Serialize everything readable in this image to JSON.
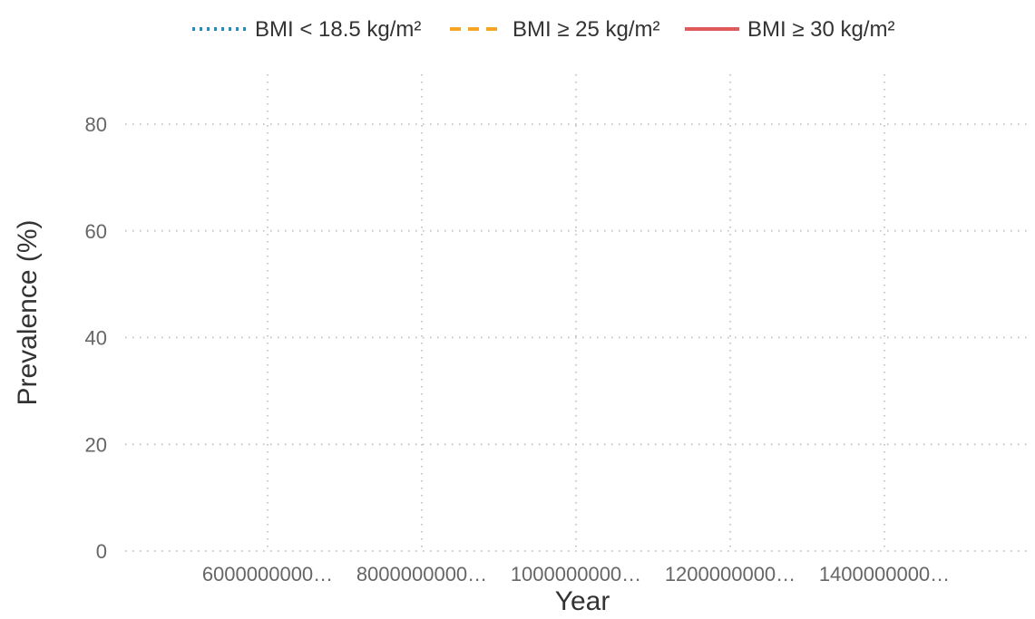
{
  "chart_data": {
    "type": "line",
    "title": "",
    "xlabel": "Year",
    "ylabel": "Prevalence (%)",
    "x_ticks": [
      "6000000000…",
      "8000000000…",
      "1000000000…",
      "1200000000…",
      "1400000000…"
    ],
    "y_ticks": [
      "0",
      "20",
      "40",
      "60",
      "80"
    ],
    "y_tick_values": [
      0,
      20,
      40,
      60,
      80
    ],
    "ylim": [
      0,
      80
    ],
    "grid": true,
    "legend_position": "top",
    "series": [
      {
        "name": "BMI < 18.5 kg/m²",
        "values": [],
        "color": "#1f8fc0",
        "style": "dotted"
      },
      {
        "name": "BMI ≥ 25 kg/m²",
        "values": [],
        "color": "#f5a623",
        "style": "dashed"
      },
      {
        "name": "BMI ≥ 30 kg/m²",
        "values": [],
        "color": "#e05a5a",
        "style": "solid"
      }
    ]
  }
}
